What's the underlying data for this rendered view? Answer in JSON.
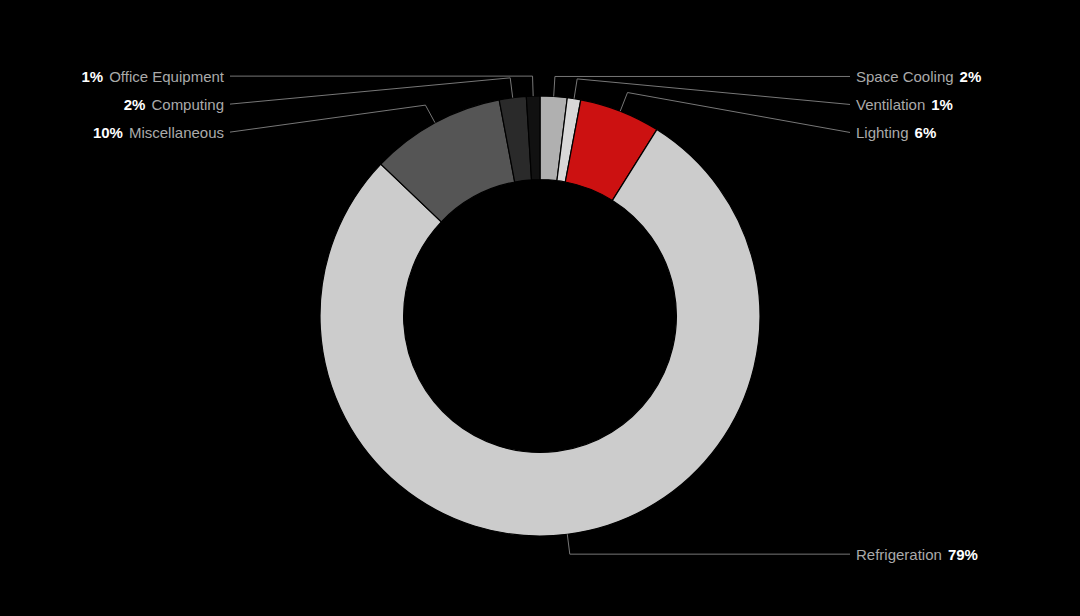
{
  "chart_data": {
    "type": "donut",
    "categories": [
      "Space Cooling",
      "Ventilation",
      "Lighting",
      "Refrigeration",
      "Miscellaneous",
      "Computing",
      "Office Equipment"
    ],
    "values": [
      2,
      1,
      6,
      79,
      10,
      2,
      1
    ],
    "value_labels": [
      "2%",
      "1%",
      "6%",
      "79%",
      "10%",
      "2%",
      "1%"
    ],
    "colors": [
      "#b0b0b0",
      "#d8d8d8",
      "#cc1111",
      "#cccccc",
      "#555555",
      "#2a2a2a",
      "#111111"
    ],
    "data_labels": true
  }
}
